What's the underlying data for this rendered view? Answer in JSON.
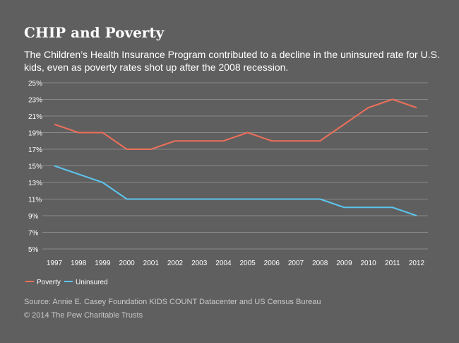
{
  "header": {
    "title": "CHIP and Poverty",
    "subtitle": "The Children’s Health Insurance Program contributed to a decline in the uninsured rate for U.S. kids, even as poverty rates shot up after the 2008 recession."
  },
  "footer": {
    "source": "Source: Annie E. Casey Foundation KIDS COUNT Datacenter and US Census Bureau",
    "copyright": "© 2014 The Pew Charitable Trusts"
  },
  "chart_data": {
    "type": "line",
    "x": [
      "1997",
      "1998",
      "1999",
      "2000",
      "2001",
      "2002",
      "2003",
      "2004",
      "2005",
      "2006",
      "2007",
      "2008",
      "2009",
      "2010",
      "2011",
      "2012"
    ],
    "series": [
      {
        "name": "Poverty",
        "color": "#ec6f5a",
        "values": [
          20,
          19,
          19,
          17,
          17,
          18,
          18,
          18,
          19,
          18,
          18,
          18,
          20,
          22,
          23,
          22
        ]
      },
      {
        "name": "Uninsured",
        "color": "#5cc4ec",
        "values": [
          15,
          14,
          13,
          11,
          11,
          11,
          11,
          11,
          11,
          11,
          11,
          11,
          10,
          10,
          10,
          9
        ]
      }
    ],
    "yticks": [
      5,
      7,
      9,
      11,
      13,
      15,
      17,
      19,
      21,
      23,
      25
    ],
    "ytick_suffix": "%",
    "ylim": [
      5,
      25
    ],
    "grid": true,
    "legend_position": "bottom-left"
  },
  "colors": {
    "background": "#5f5f5f",
    "grid": "#8a8a8a",
    "poverty": "#ec6f5a",
    "uninsured": "#5cc4ec"
  }
}
